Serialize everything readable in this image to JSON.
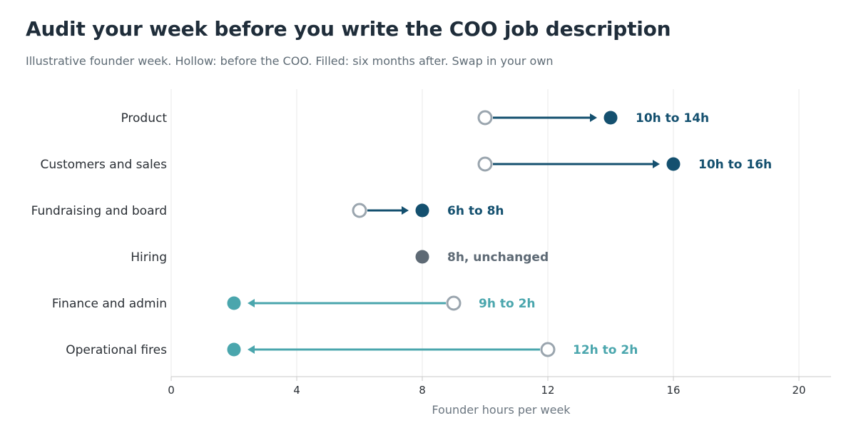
{
  "title": "Audit your week before you write the COO job description",
  "subtitle": "Illustrative founder week. Hollow: before the COO.  Filled: six months after. Swap in your own",
  "colors": {
    "increase": "#14506f",
    "decrease": "#4aa6ad",
    "unchanged": "#5e6a75",
    "before_marker": "#9aa5ae",
    "grid": "#e8e8e8",
    "axis": "#c8c8c8",
    "category_text": "#2a2f35",
    "axis_text": "#2a2f35",
    "axis_title_text": "#6b7680"
  },
  "chart_data": {
    "type": "dumbbell",
    "xlabel": "Founder hours per week",
    "xlim": [
      0,
      21
    ],
    "xticks": [
      0,
      4,
      8,
      12,
      16,
      20
    ],
    "grid": "vertical",
    "categories": [
      "Product",
      "Customers and sales",
      "Fundraising and board",
      "Hiring",
      "Finance and admin",
      "Operational fires"
    ],
    "before": [
      10,
      10,
      6,
      8,
      9,
      12
    ],
    "after": [
      14,
      16,
      8,
      8,
      2,
      2
    ],
    "labels": [
      "10h to 14h",
      "10h to 16h",
      "6h to 8h",
      "8h, unchanged",
      "9h to 2h",
      "12h to 2h"
    ]
  }
}
